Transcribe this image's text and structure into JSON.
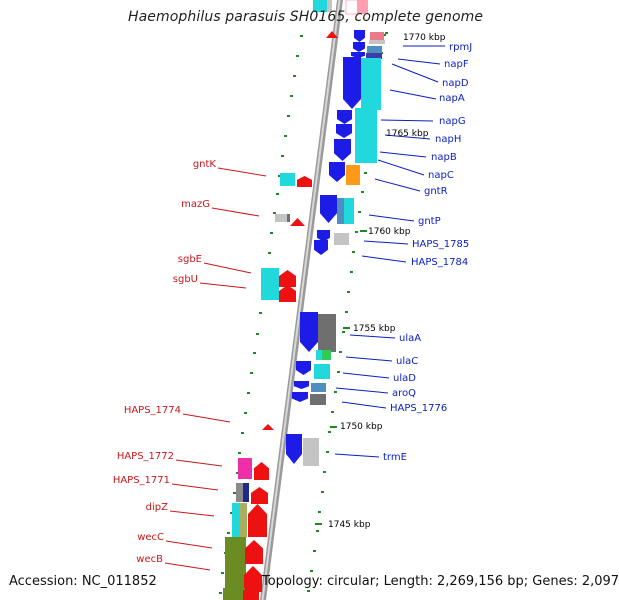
{
  "title": "Haemophilus parasuis SH0165, complete genome",
  "footer": {
    "accession": "Accession: NC_011852",
    "topology": "Topology: circular; Length: 2,269,156 bp; Genes: 2,097"
  },
  "colors": {
    "label_right": "#0a1fbf",
    "label_left": "#c8181b",
    "backbone": "#9a9a9a",
    "tick": "#1f8a1f",
    "blue": "#1c1ce6",
    "cyan": "#21d8dd",
    "red": "#ee1111",
    "grey": "#6f6f6f",
    "light_grey": "#c4c4c4",
    "orange": "#ff9a18",
    "magenta": "#ee2fa8",
    "olive": "#6b8c22",
    "steel": "#4f8fbf"
  },
  "kbp_marks": [
    "1770 kbp",
    "1765 kbp",
    "1760 kbp",
    "1755 kbp",
    "1750 kbp",
    "1745 kbp"
  ],
  "genes_right": [
    "rpmJ",
    "napF",
    "napD",
    "napA",
    "napG",
    "napH",
    "napB",
    "napC",
    "gntR",
    "gntP",
    "HAPS_1785",
    "HAPS_1784",
    "ulaA",
    "ulaC",
    "ulaD",
    "aroQ",
    "HAPS_1776",
    "trmE"
  ],
  "genes_left": [
    "gntK",
    "mazG",
    "sgbE",
    "sgbU",
    "HAPS_1774",
    "HAPS_1772",
    "HAPS_1771",
    "dipZ",
    "wecC",
    "wecB"
  ]
}
